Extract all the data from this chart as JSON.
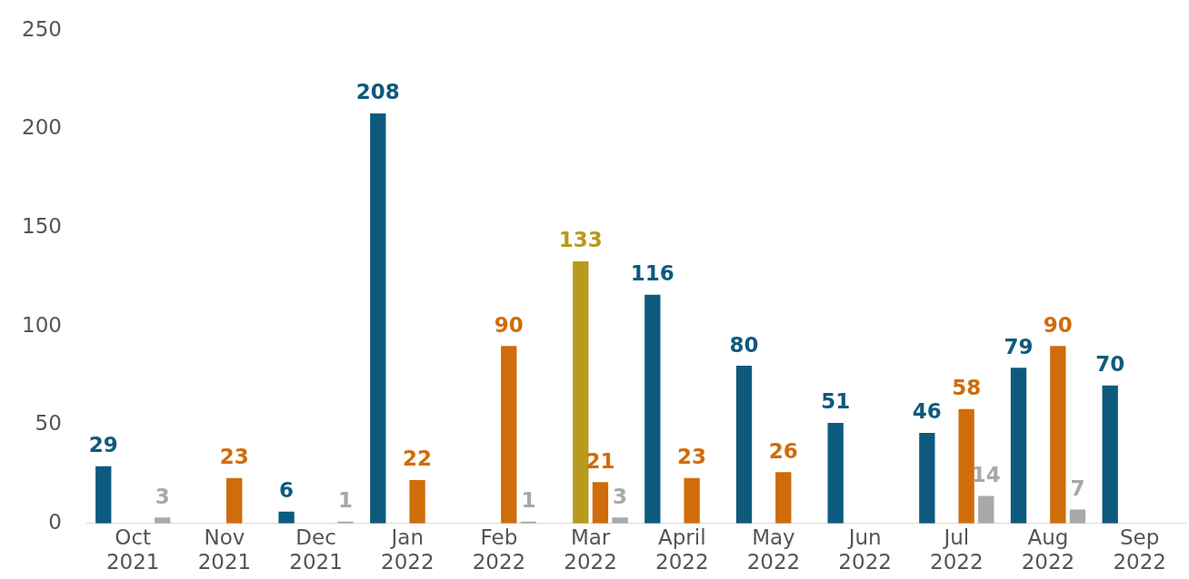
{
  "chart_data": {
    "type": "bar",
    "categories": [
      "Oct 2021",
      "Nov 2021",
      "Dec 2021",
      "Jan 2022",
      "Feb 2022",
      "Mar 2022",
      "April 2022",
      "May 2022",
      "Jun 2022",
      "Jul 2022",
      "Aug 2022",
      "Sep 2022"
    ],
    "series": [
      {
        "color": "#0e5a7e",
        "values": [
          29,
          null,
          6,
          208,
          null,
          null,
          116,
          80,
          51,
          46,
          79,
          70
        ]
      },
      {
        "color": "#b89a1c",
        "values": [
          null,
          null,
          null,
          null,
          null,
          133,
          null,
          null,
          null,
          null,
          null,
          null
        ]
      },
      {
        "color": "#d06c0a",
        "values": [
          null,
          23,
          null,
          22,
          90,
          21,
          23,
          26,
          null,
          58,
          90,
          null
        ]
      },
      {
        "color": "#a8a8a8",
        "values": [
          3,
          null,
          1,
          null,
          1,
          3,
          null,
          null,
          null,
          14,
          7,
          null
        ]
      }
    ],
    "ylim": [
      0,
      250
    ],
    "yticks": [
      0,
      50,
      100,
      150,
      200,
      250
    ],
    "grid": false,
    "legend": false,
    "data_labels": true
  }
}
